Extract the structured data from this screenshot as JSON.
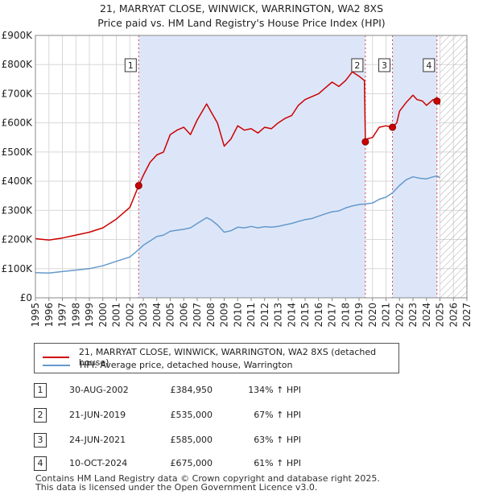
{
  "header": {
    "title": "21, MARRYAT CLOSE, WINWICK, WARRINGTON, WA2 8XS",
    "subtitle": "Price paid vs. HM Land Registry's House Price Index (HPI)"
  },
  "chart_data": {
    "type": "line",
    "title": "21, MARRYAT CLOSE, WINWICK, WARRINGTON, WA2 8XS",
    "subtitle": "Price paid vs. HM Land Registry's House Price Index (HPI)",
    "xlabel": "",
    "ylabel": "",
    "xlim": [
      1995,
      2027
    ],
    "ylim": [
      0,
      900000
    ],
    "x_ticks": [
      "1995",
      "1996",
      "1997",
      "1998",
      "1999",
      "2000",
      "2001",
      "2002",
      "2003",
      "2004",
      "2005",
      "2006",
      "2007",
      "2008",
      "2009",
      "2010",
      "2011",
      "2012",
      "2013",
      "2014",
      "2015",
      "2016",
      "2017",
      "2018",
      "2019",
      "2020",
      "2021",
      "2022",
      "2023",
      "2024",
      "2025",
      "2026",
      "2027"
    ],
    "y_ticks": [
      {
        "value": 0,
        "label": "£0"
      },
      {
        "value": 100000,
        "label": "£100K"
      },
      {
        "value": 200000,
        "label": "£200K"
      },
      {
        "value": 300000,
        "label": "£300K"
      },
      {
        "value": 400000,
        "label": "£400K"
      },
      {
        "value": 500000,
        "label": "£500K"
      },
      {
        "value": 600000,
        "label": "£600K"
      },
      {
        "value": 700000,
        "label": "£700K"
      },
      {
        "value": 800000,
        "label": "£800K"
      },
      {
        "value": 900000,
        "label": "£900K"
      }
    ],
    "grid": true,
    "shaded_ownership_periods": [
      [
        2002.66,
        2019.47
      ],
      [
        2021.48,
        2024.78
      ]
    ],
    "future_hatch_start": 2025.0,
    "colors": {
      "property": "#cc0000",
      "hpi": "#6699cc",
      "shade": "#dde6f8",
      "marker_line": "#dd4444"
    },
    "series": [
      {
        "name": "21, MARRYAT CLOSE, WINWICK, WARRINGTON, WA2 8XS (detached house)",
        "x": [
          1995.0,
          1996.0,
          1997.0,
          1998.0,
          1999.0,
          2000.0,
          2001.0,
          2002.0,
          2002.66,
          2003.0,
          2003.5,
          2004.0,
          2004.5,
          2005.0,
          2005.5,
          2006.0,
          2006.5,
          2007.0,
          2007.7,
          2008.0,
          2008.5,
          2009.0,
          2009.5,
          2010.0,
          2010.5,
          2011.0,
          2011.5,
          2012.0,
          2012.5,
          2013.0,
          2013.5,
          2014.0,
          2014.5,
          2015.0,
          2015.5,
          2016.0,
          2016.5,
          2017.0,
          2017.5,
          2018.0,
          2018.5,
          2019.0,
          2019.4,
          2019.47,
          2019.6,
          2020.0,
          2020.5,
          2021.0,
          2021.48,
          2021.8,
          2022.0,
          2022.5,
          2023.0,
          2023.3,
          2023.7,
          2024.0,
          2024.5,
          2024.78,
          2025.0
        ],
        "values": [
          203000,
          198000,
          205000,
          215000,
          225000,
          240000,
          270000,
          310000,
          384950,
          420000,
          465000,
          490000,
          500000,
          560000,
          575000,
          585000,
          560000,
          610000,
          665000,
          640000,
          600000,
          520000,
          545000,
          590000,
          575000,
          580000,
          565000,
          585000,
          580000,
          600000,
          615000,
          625000,
          660000,
          680000,
          690000,
          700000,
          720000,
          740000,
          725000,
          745000,
          775000,
          760000,
          745000,
          535000,
          545000,
          550000,
          585000,
          590000,
          585000,
          600000,
          640000,
          670000,
          695000,
          680000,
          675000,
          660000,
          680000,
          675000,
          663000
        ]
      },
      {
        "name": "HPI: Average price, detached house, Warrington",
        "x": [
          1995.0,
          1996.0,
          1997.0,
          1998.0,
          1999.0,
          2000.0,
          2001.0,
          2002.0,
          2002.66,
          2003.0,
          2003.5,
          2004.0,
          2004.5,
          2005.0,
          2005.5,
          2006.0,
          2006.5,
          2007.0,
          2007.7,
          2008.0,
          2008.5,
          2009.0,
          2009.5,
          2010.0,
          2010.5,
          2011.0,
          2011.5,
          2012.0,
          2012.5,
          2013.0,
          2013.5,
          2014.0,
          2014.5,
          2015.0,
          2015.5,
          2016.0,
          2016.5,
          2017.0,
          2017.5,
          2018.0,
          2018.5,
          2019.0,
          2019.47,
          2020.0,
          2020.5,
          2021.0,
          2021.48,
          2022.0,
          2022.5,
          2023.0,
          2023.5,
          2024.0,
          2024.5,
          2024.78,
          2025.0
        ],
        "values": [
          86000,
          85000,
          90000,
          95000,
          100000,
          110000,
          125000,
          140000,
          165000,
          180000,
          195000,
          210000,
          215000,
          228000,
          232000,
          235000,
          240000,
          255000,
          275000,
          268000,
          250000,
          225000,
          230000,
          242000,
          240000,
          245000,
          240000,
          244000,
          242000,
          245000,
          250000,
          255000,
          262000,
          268000,
          272000,
          280000,
          288000,
          295000,
          298000,
          308000,
          315000,
          320000,
          322000,
          325000,
          338000,
          345000,
          360000,
          385000,
          405000,
          415000,
          410000,
          408000,
          415000,
          418000,
          412000
        ]
      }
    ],
    "sale_markers": [
      {
        "label": "1",
        "x": 2002.66,
        "value": 384950
      },
      {
        "label": "2",
        "x": 2019.47,
        "value": 535000
      },
      {
        "label": "3",
        "x": 2021.48,
        "value": 585000
      },
      {
        "label": "4",
        "x": 2024.78,
        "value": 675000
      }
    ]
  },
  "legend": {
    "items": [
      {
        "label": "21, MARRYAT CLOSE, WINWICK, WARRINGTON, WA2 8XS (detached house)",
        "color": "#cc0000"
      },
      {
        "label": "HPI: Average price, detached house, Warrington",
        "color": "#6699cc"
      }
    ]
  },
  "transactions": [
    {
      "num": "1",
      "date": "30-AUG-2002",
      "price": "£384,950",
      "hpi": "134% ↑ HPI"
    },
    {
      "num": "2",
      "date": "21-JUN-2019",
      "price": "£535,000",
      "hpi": "67% ↑ HPI"
    },
    {
      "num": "3",
      "date": "24-JUN-2021",
      "price": "£585,000",
      "hpi": "63% ↑ HPI"
    },
    {
      "num": "4",
      "date": "10-OCT-2024",
      "price": "£675,000",
      "hpi": "61% ↑ HPI"
    }
  ],
  "footer": {
    "line1": "Contains HM Land Registry data © Crown copyright and database right 2025.",
    "line2": "This data is licensed under the Open Government Licence v3.0."
  }
}
